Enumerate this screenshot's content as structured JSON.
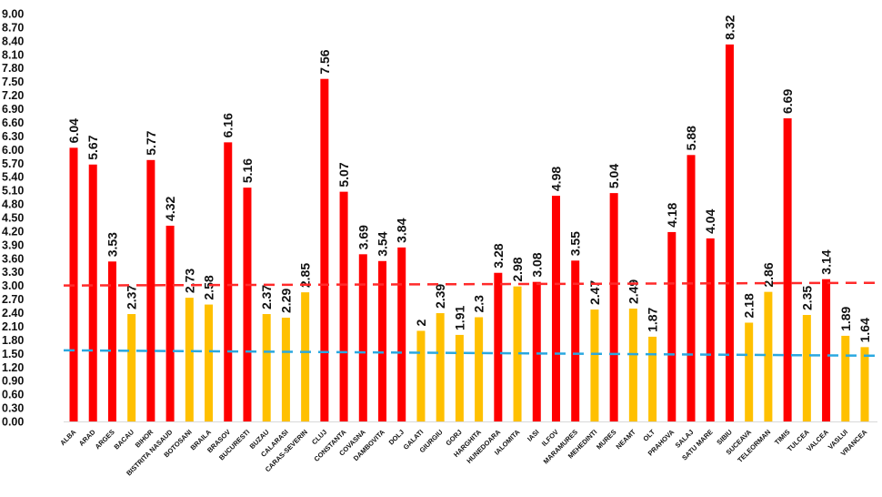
{
  "chart_data": {
    "type": "bar",
    "title": "",
    "xlabel": "",
    "ylabel": "",
    "ylim": [
      0,
      9
    ],
    "ytick_step": 0.3,
    "grid": false,
    "legend": "none",
    "categories": [
      "ALBA",
      "ARAD",
      "ARGES",
      "BACAU",
      "BIHOR",
      "BISTRITA NASAUD",
      "BOTOSANI",
      "BRAILA",
      "BRASOV",
      "BUCURESTI",
      "BUZAU",
      "CALARASI",
      "CARAS-SEVERIN",
      "CLUJ",
      "CONSTANTA",
      "COVASNA",
      "DAMBOVITA",
      "DOLJ",
      "GALATI",
      "GIURGIU",
      "GORJ",
      "HARGHITA",
      "HUNEDOARA",
      "IALOMITA",
      "IASI",
      "ILFOV",
      "MARAMURES",
      "MEHEDINTI",
      "MURES",
      "NEAMT",
      "OLT",
      "PRAHOVA",
      "SALAJ",
      "SATU MARE",
      "SIBIU",
      "SUCEAVA",
      "TELEORMAN",
      "TIMIS",
      "TULCEA",
      "VALCEA",
      "VASLUI",
      "VRANCEA"
    ],
    "values": [
      6.04,
      5.67,
      3.53,
      2.37,
      5.77,
      4.32,
      2.73,
      2.58,
      6.16,
      5.16,
      2.37,
      2.29,
      2.85,
      7.56,
      5.07,
      3.69,
      3.54,
      3.84,
      2,
      2.39,
      1.91,
      2.3,
      3.28,
      2.98,
      3.08,
      4.98,
      3.55,
      2.47,
      5.04,
      2.49,
      1.87,
      4.18,
      5.88,
      4.04,
      8.32,
      2.18,
      2.86,
      6.69,
      2.35,
      3.14,
      1.89,
      1.64
    ],
    "color_rule": {
      "threshold": 3,
      "above_color": "#ff0000",
      "below_color": "#ffc000"
    },
    "reference_lines": [
      {
        "color": "#ff2a2a",
        "style": "dashed",
        "start_value": 3.0,
        "end_value": 3.06
      },
      {
        "color": "#2aa8e0",
        "style": "dashed",
        "start_value": 1.57,
        "end_value": 1.45
      }
    ]
  }
}
